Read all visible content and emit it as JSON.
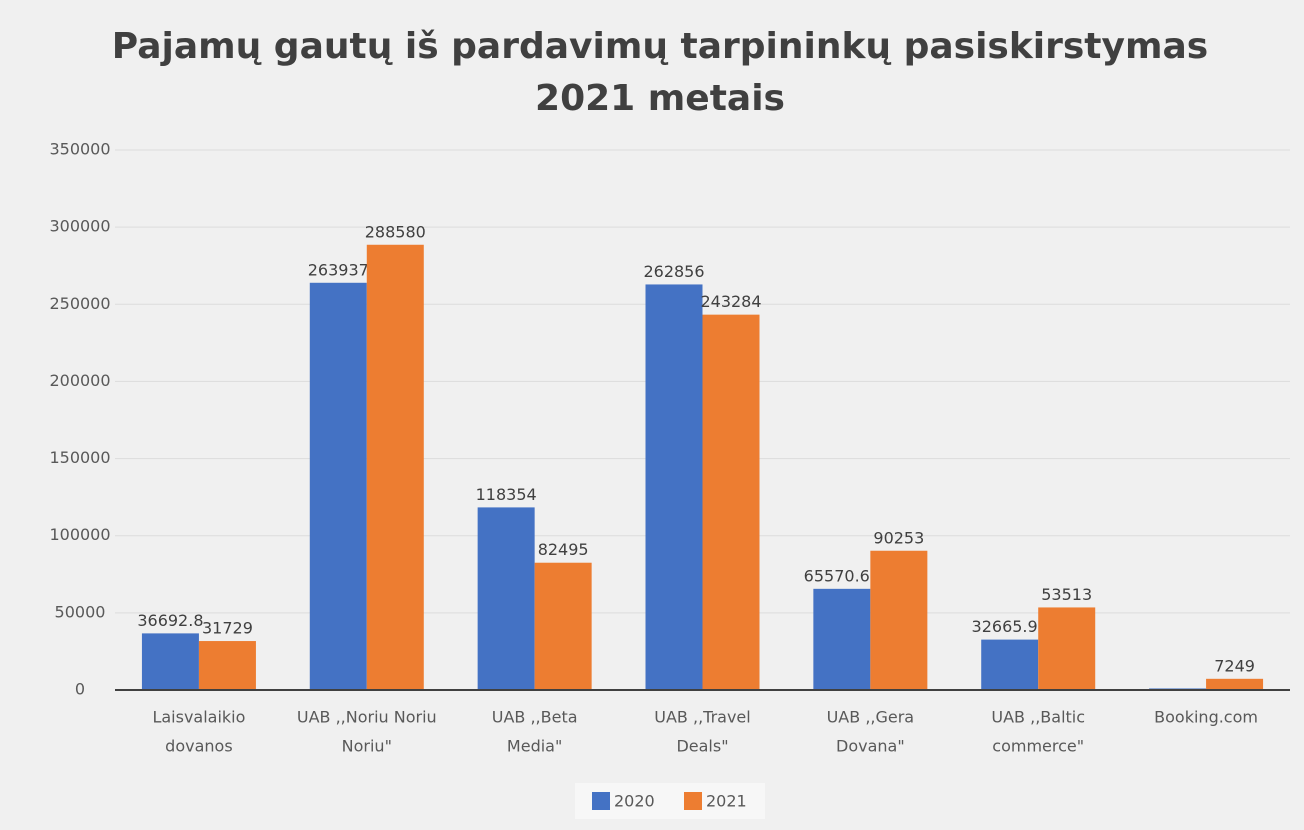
{
  "chart_data": {
    "type": "bar",
    "title": [
      "Pajamų gautų iš pardavimų tarpininkų pasiskirstymas",
      "2021 metais"
    ],
    "categories": [
      [
        "Laisvalaikio",
        "dovanos"
      ],
      [
        "UAB ,,Noriu Noriu",
        "Noriu\""
      ],
      [
        "UAB ,,Beta",
        "Media\""
      ],
      [
        "UAB ,,Travel",
        "Deals\""
      ],
      [
        "UAB ,,Gera",
        "Dovana\""
      ],
      [
        "UAB ,,Baltic",
        "commerce\""
      ],
      [
        "Booking.com"
      ]
    ],
    "series": [
      {
        "name": "2020",
        "color": "#4472c4",
        "values": [
          36692.8,
          263937,
          118354,
          262856,
          65570.65,
          32665.97,
          1000
        ],
        "value_labels": [
          "36692.8",
          "263937",
          "118354",
          "262856",
          "65570.65",
          "32665.97",
          null
        ]
      },
      {
        "name": "2021",
        "color": "#ed7d31",
        "values": [
          31729,
          288580,
          82495,
          243284,
          90253,
          53513,
          7249
        ]
      }
    ],
    "ylim": [
      0,
      350000
    ],
    "yticks": [
      0,
      50000,
      100000,
      150000,
      200000,
      250000,
      300000,
      350000
    ],
    "grid": true,
    "legend": "bottom"
  }
}
